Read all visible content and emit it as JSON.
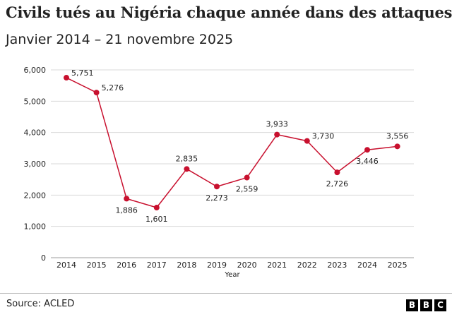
{
  "header": {
    "title": "Civils tués au Nigéria chaque année dans des attaques.",
    "subtitle": "Janvier 2014 – 21 novembre 2025"
  },
  "footer": {
    "source": "Source:  ACLED",
    "logo_letters": [
      "B",
      "B",
      "C"
    ]
  },
  "colors": {
    "series": "#c8102e",
    "grid": "#d9d9d9",
    "text": "#222222"
  },
  "chart_data": {
    "type": "line",
    "title": "Civils tués au Nigéria chaque année dans des attaques.",
    "subtitle": "Janvier 2014 – 21 novembre 2025",
    "xlabel": "Year",
    "ylabel": "",
    "x": [
      "2014",
      "2015",
      "2016",
      "2017",
      "2018",
      "2019",
      "2020",
      "2021",
      "2022",
      "2023",
      "2024",
      "2025"
    ],
    "series": [
      {
        "values": [
          5751,
          5276,
          1886,
          1601,
          2835,
          2273,
          2559,
          3933,
          3730,
          2726,
          3446,
          3556
        ],
        "labels": [
          "5,751",
          "5,276",
          "1,886",
          "1,601",
          "2,835",
          "2,273",
          "2,559",
          "3,933",
          "3,730",
          "2,726",
          "3,446",
          "3,556"
        ],
        "label_positions": [
          "right",
          "right",
          "below",
          "below",
          "above",
          "below",
          "below",
          "above",
          "right",
          "below",
          "below",
          "above"
        ]
      }
    ],
    "ylim": [
      0,
      6000
    ],
    "yticks": [
      0,
      1000,
      2000,
      3000,
      4000,
      5000,
      6000
    ],
    "ytick_labels": [
      "0",
      "1,000",
      "2,000",
      "3,000",
      "4,000",
      "5,000",
      "6,000"
    ],
    "grid": true,
    "legend": "none"
  }
}
